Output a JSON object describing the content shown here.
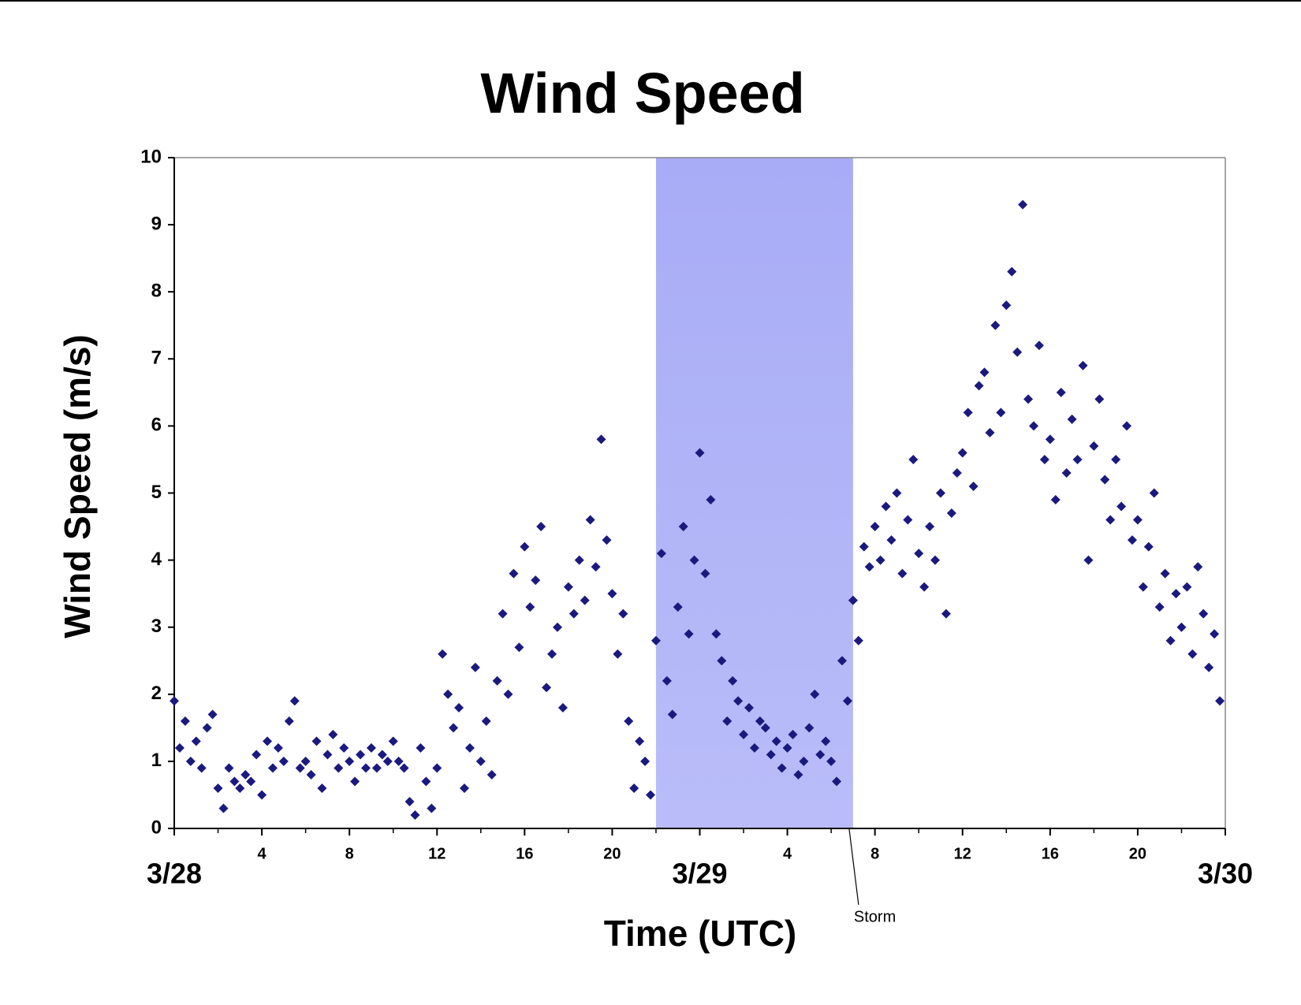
{
  "chart_data": {
    "type": "scatter",
    "title": "Wind Speed",
    "y_label": "Wind Speed (m/s)",
    "x_label": "Time (UTC)",
    "annotation": "Storm",
    "storm_band": [
      22,
      31
    ],
    "band_color": "#a8acf6",
    "color": "#1a1a7e",
    "xlim": [
      0,
      48
    ],
    "ylim": [
      0,
      10
    ],
    "yticks": [
      0,
      1,
      2,
      3,
      4,
      5,
      6,
      7,
      8,
      9,
      10
    ],
    "xticks": [
      {
        "value": 0,
        "label": "3/28"
      },
      4,
      8,
      12,
      16,
      20,
      {
        "value": 24,
        "label": "3/29"
      },
      {
        "value": 28,
        "label": "4"
      },
      {
        "value": 32,
        "label": "8"
      },
      {
        "value": 36,
        "label": "12"
      },
      {
        "value": 40,
        "label": "16"
      },
      {
        "value": 44,
        "label": "20"
      },
      {
        "value": 48,
        "label": "3/30"
      }
    ],
    "x_minor_ticks": [
      2,
      6,
      10,
      14,
      18,
      22,
      26,
      30,
      34,
      38,
      42,
      46
    ],
    "x": [
      0,
      0.25,
      0.5,
      0.75,
      1,
      1.25,
      1.5,
      1.75,
      2,
      2.25,
      2.5,
      2.75,
      3,
      3.25,
      3.5,
      3.75,
      4,
      4.25,
      4.5,
      4.75,
      5,
      5.25,
      5.5,
      5.75,
      6,
      6.25,
      6.5,
      6.75,
      7,
      7.25,
      7.5,
      7.75,
      8,
      8.25,
      8.5,
      8.75,
      9,
      9.25,
      9.5,
      9.75,
      10,
      10.25,
      10.5,
      10.75,
      11,
      11.25,
      11.5,
      11.75,
      12,
      12.25,
      12.5,
      12.75,
      13,
      13.25,
      13.5,
      13.75,
      14,
      14.25,
      14.5,
      14.75,
      15,
      15.25,
      15.5,
      15.75,
      16,
      16.25,
      16.5,
      16.75,
      17,
      17.25,
      17.5,
      17.75,
      18,
      18.25,
      18.5,
      18.75,
      19,
      19.25,
      19.5,
      19.75,
      20,
      20.25,
      20.5,
      20.75,
      21,
      21.25,
      21.5,
      21.75,
      22,
      22.25,
      22.5,
      22.75,
      23,
      23.25,
      23.5,
      23.75,
      24,
      24.25,
      24.5,
      24.75,
      25,
      25.25,
      25.5,
      25.75,
      26,
      26.25,
      26.5,
      26.75,
      27,
      27.25,
      27.5,
      27.75,
      28,
      28.25,
      28.5,
      28.75,
      29,
      29.25,
      29.5,
      29.75,
      30,
      30.25,
      30.5,
      30.75,
      31,
      31.25,
      31.5,
      31.75,
      32,
      32.25,
      32.5,
      32.75,
      33,
      33.25,
      33.5,
      33.75,
      34,
      34.25,
      34.5,
      34.75,
      35,
      35.25,
      35.5,
      35.75,
      36,
      36.25,
      36.5,
      36.75,
      37,
      37.25,
      37.5,
      37.75,
      38,
      38.25,
      38.5,
      38.75,
      39,
      39.25,
      39.5,
      39.75,
      40,
      40.25,
      40.5,
      40.75,
      41,
      41.25,
      41.5,
      41.75,
      42,
      42.25,
      42.5,
      42.75,
      43,
      43.25,
      43.5,
      43.75,
      44,
      44.25,
      44.5,
      44.75,
      45,
      45.25,
      45.5,
      45.75,
      46,
      46.25,
      46.5,
      46.75,
      47,
      47.25,
      47.5,
      47.75
    ],
    "values": [
      1.9,
      1.2,
      1.6,
      1.0,
      1.3,
      0.9,
      1.5,
      1.7,
      0.6,
      0.3,
      0.9,
      0.7,
      0.6,
      0.8,
      0.7,
      1.1,
      0.5,
      1.3,
      0.9,
      1.2,
      1.0,
      1.6,
      1.9,
      0.9,
      1.0,
      0.8,
      1.3,
      0.6,
      1.1,
      1.4,
      0.9,
      1.2,
      1.0,
      0.7,
      1.1,
      0.9,
      1.2,
      0.9,
      1.1,
      1.0,
      1.3,
      1.0,
      0.9,
      0.4,
      0.2,
      1.2,
      0.7,
      0.3,
      0.9,
      2.6,
      2.0,
      1.5,
      1.8,
      0.6,
      1.2,
      2.4,
      1.0,
      1.6,
      0.8,
      2.2,
      3.2,
      2.0,
      3.8,
      2.7,
      4.2,
      3.3,
      3.7,
      4.5,
      2.1,
      2.6,
      3.0,
      1.8,
      3.6,
      3.2,
      4.0,
      3.4,
      4.6,
      3.9,
      5.8,
      4.3,
      3.5,
      2.6,
      3.2,
      1.6,
      0.6,
      1.3,
      1.0,
      0.5,
      2.8,
      4.1,
      2.2,
      1.7,
      3.3,
      4.5,
      2.9,
      4.0,
      5.6,
      3.8,
      4.9,
      2.9,
      2.5,
      1.6,
      2.2,
      1.9,
      1.4,
      1.8,
      1.2,
      1.6,
      1.5,
      1.1,
      1.3,
      0.9,
      1.2,
      1.4,
      0.8,
      1.0,
      1.5,
      2.0,
      1.1,
      1.3,
      1.0,
      0.7,
      2.5,
      1.9,
      3.4,
      2.8,
      4.2,
      3.9,
      4.5,
      4.0,
      4.8,
      4.3,
      5.0,
      3.8,
      4.6,
      5.5,
      4.1,
      3.6,
      4.5,
      4.0,
      5.0,
      3.2,
      4.7,
      5.3,
      5.6,
      6.2,
      5.1,
      6.6,
      6.8,
      5.9,
      7.5,
      6.2,
      7.8,
      8.3,
      7.1,
      9.3,
      6.4,
      6.0,
      7.2,
      5.5,
      5.8,
      4.9,
      6.5,
      5.3,
      6.1,
      5.5,
      6.9,
      4.0,
      5.7,
      6.4,
      5.2,
      4.6,
      5.5,
      4.8,
      6.0,
      4.3,
      4.6,
      3.6,
      4.2,
      5.0,
      3.3,
      3.8,
      2.8,
      3.5,
      3.0,
      3.6,
      2.6,
      3.9,
      3.2,
      2.4,
      2.9,
      1.9
    ]
  }
}
